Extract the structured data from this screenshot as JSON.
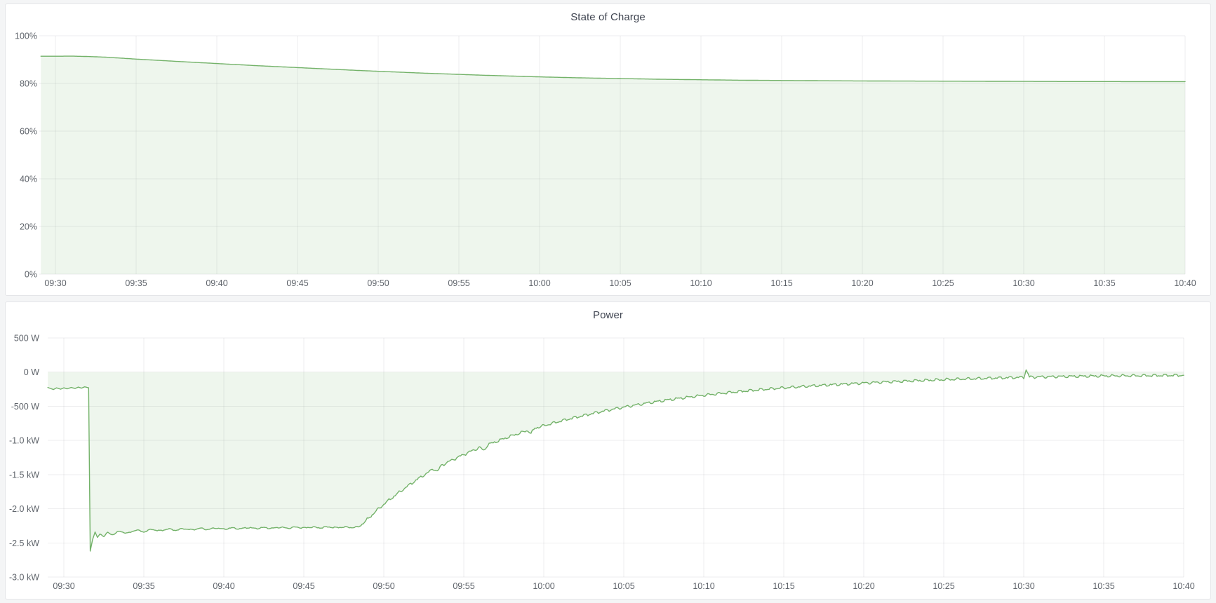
{
  "page": {
    "background_color": "#f4f5f6",
    "panel_background": "#ffffff",
    "accent_green": "#73b269"
  },
  "chart_data": [
    {
      "type": "area",
      "title": "State of Charge",
      "xlabel": "",
      "ylabel": "",
      "unit": "%",
      "ylim": [
        0,
        100
      ],
      "baseline": 0,
      "grid": true,
      "legend_position": "none",
      "line_color": "#73b269",
      "fill_color": "rgba(115,178,105,0.12)",
      "y_ticks": [
        {
          "value": 100,
          "label": "100%"
        },
        {
          "value": 80,
          "label": "80%"
        },
        {
          "value": 60,
          "label": "60%"
        },
        {
          "value": 40,
          "label": "40%"
        },
        {
          "value": 20,
          "label": "20%"
        },
        {
          "value": 0,
          "label": "0%"
        }
      ],
      "x_ticks": [
        "09:30",
        "09:35",
        "09:40",
        "09:45",
        "09:50",
        "09:55",
        "10:00",
        "10:05",
        "10:10",
        "10:15",
        "10:20",
        "10:25",
        "10:30",
        "10:35",
        "10:40"
      ],
      "x_tick_interval_minutes": 5,
      "x_data_range_minutes": [
        -0.9,
        70
      ],
      "series": [
        {
          "name": "State of Charge",
          "points_minутes_percent_comment": "pairs of [minutes after 09:30, percent]",
          "points": [
            [
              -0.9,
              91.4
            ],
            [
              0,
              91.4
            ],
            [
              1,
              91.45
            ],
            [
              2,
              91.3
            ],
            [
              3,
              91.05
            ],
            [
              4,
              90.65
            ],
            [
              5,
              90.2
            ],
            [
              6.25,
              89.75
            ],
            [
              7.5,
              89.25
            ],
            [
              8.75,
              88.8
            ],
            [
              10,
              88.35
            ],
            [
              11.25,
              87.9
            ],
            [
              12.5,
              87.45
            ],
            [
              13.75,
              87.05
            ],
            [
              15,
              86.65
            ],
            [
              16.25,
              86.25
            ],
            [
              17.5,
              85.85
            ],
            [
              18.75,
              85.45
            ],
            [
              20,
              85.1
            ],
            [
              21.25,
              84.75
            ],
            [
              22.5,
              84.4
            ],
            [
              23.75,
              84.1
            ],
            [
              25,
              83.8
            ],
            [
              26.25,
              83.5
            ],
            [
              27.5,
              83.25
            ],
            [
              28.75,
              83.0
            ],
            [
              30,
              82.75
            ],
            [
              31.25,
              82.55
            ],
            [
              32.5,
              82.35
            ],
            [
              33.75,
              82.2
            ],
            [
              35,
              82.05
            ],
            [
              36.25,
              81.9
            ],
            [
              37.5,
              81.75
            ],
            [
              38.75,
              81.65
            ],
            [
              40,
              81.55
            ],
            [
              41.25,
              81.45
            ],
            [
              42.5,
              81.35
            ],
            [
              43.75,
              81.3
            ],
            [
              45,
              81.25
            ],
            [
              46.25,
              81.2
            ],
            [
              47.5,
              81.15
            ],
            [
              48.75,
              81.1
            ],
            [
              50,
              81.05
            ],
            [
              52.5,
              81.0
            ],
            [
              55,
              80.95
            ],
            [
              57.5,
              80.9
            ],
            [
              60,
              80.85
            ],
            [
              62.5,
              80.8
            ],
            [
              65,
              80.8
            ],
            [
              67.5,
              80.75
            ],
            [
              70,
              80.75
            ]
          ]
        }
      ]
    },
    {
      "type": "area",
      "title": "Power",
      "xlabel": "",
      "ylabel": "",
      "unit": "W",
      "ylim": [
        -3000,
        500
      ],
      "baseline": 0,
      "grid": true,
      "legend_position": "none",
      "line_color": "#73b269",
      "fill_color": "rgba(115,178,105,0.12)",
      "noise": [
        {
          "until_m": 2.2,
          "amp": 0
        },
        {
          "until_m": 18.5,
          "amp": 14
        },
        {
          "until_m": 70,
          "amp": 26
        }
      ],
      "y_ticks": [
        {
          "value": 500,
          "label": "500 W"
        },
        {
          "value": 0,
          "label": "0 W"
        },
        {
          "value": -500,
          "label": "-500 W"
        },
        {
          "value": -1000,
          "label": "-1.0 kW"
        },
        {
          "value": -1500,
          "label": "-1.5 kW"
        },
        {
          "value": -2000,
          "label": "-2.0 kW"
        },
        {
          "value": -2500,
          "label": "-2.5 kW"
        },
        {
          "value": -3000,
          "label": "-3.0 kW"
        }
      ],
      "x_ticks": [
        "09:30",
        "09:35",
        "09:40",
        "09:45",
        "09:50",
        "09:55",
        "10:00",
        "10:05",
        "10:10",
        "10:15",
        "10:20",
        "10:25",
        "10:30",
        "10:35",
        "10:40"
      ],
      "x_tick_interval_minutes": 5,
      "x_data_range_minutes": [
        -1,
        70
      ],
      "series": [
        {
          "name": "Power",
          "points_minutes_watts_comment": "pairs of [minutes after 09:30, watts]",
          "points": [
            [
              -1,
              -225
            ],
            [
              -0.65,
              -255
            ],
            [
              -0.45,
              -230
            ],
            [
              -0.2,
              -250
            ],
            [
              0,
              -230
            ],
            [
              0.2,
              -245
            ],
            [
              0.45,
              -225
            ],
            [
              0.7,
              -240
            ],
            [
              0.9,
              -220
            ],
            [
              1.1,
              -235
            ],
            [
              1.3,
              -215
            ],
            [
              1.45,
              -225
            ],
            [
              1.55,
              -230
            ],
            [
              1.65,
              -2620
            ],
            [
              1.8,
              -2450
            ],
            [
              1.95,
              -2340
            ],
            [
              2.1,
              -2420
            ],
            [
              2.25,
              -2370
            ],
            [
              2.5,
              -2400
            ],
            [
              2.75,
              -2350
            ],
            [
              3,
              -2380
            ],
            [
              3.5,
              -2330
            ],
            [
              4,
              -2360
            ],
            [
              4.5,
              -2310
            ],
            [
              5,
              -2340
            ],
            [
              5.5,
              -2300
            ],
            [
              6,
              -2325
            ],
            [
              6.5,
              -2295
            ],
            [
              7,
              -2315
            ],
            [
              7.5,
              -2290
            ],
            [
              8,
              -2310
            ],
            [
              8.5,
              -2285
            ],
            [
              9,
              -2305
            ],
            [
              9.5,
              -2280
            ],
            [
              10,
              -2300
            ],
            [
              10.5,
              -2280
            ],
            [
              11,
              -2295
            ],
            [
              11.5,
              -2275
            ],
            [
              12,
              -2290
            ],
            [
              12.5,
              -2275
            ],
            [
              13,
              -2288
            ],
            [
              13.5,
              -2270
            ],
            [
              14,
              -2285
            ],
            [
              14.5,
              -2268
            ],
            [
              15,
              -2282
            ],
            [
              15.5,
              -2268
            ],
            [
              16,
              -2280
            ],
            [
              16.5,
              -2265
            ],
            [
              17,
              -2278
            ],
            [
              17.5,
              -2268
            ],
            [
              18,
              -2275
            ],
            [
              18.4,
              -2268
            ],
            [
              18.8,
              -2195
            ],
            [
              19.2,
              -2105
            ],
            [
              19.6,
              -2015
            ],
            [
              20,
              -1935
            ],
            [
              20.4,
              -1860
            ],
            [
              20.8,
              -1788
            ],
            [
              21.2,
              -1718
            ],
            [
              21.6,
              -1650
            ],
            [
              22,
              -1585
            ],
            [
              22.4,
              -1523
            ],
            [
              22.8,
              -1465
            ],
            [
              23.1,
              -1412
            ],
            [
              23.35,
              -1455
            ],
            [
              23.6,
              -1365
            ],
            [
              24,
              -1318
            ],
            [
              24.4,
              -1272
            ],
            [
              24.8,
              -1228
            ],
            [
              25.2,
              -1185
            ],
            [
              25.6,
              -1143
            ],
            [
              26,
              -1103
            ],
            [
              26.25,
              -1148
            ],
            [
              26.5,
              -1063
            ],
            [
              27,
              -1020
            ],
            [
              27.5,
              -975
            ],
            [
              28,
              -932
            ],
            [
              28.5,
              -892
            ],
            [
              29,
              -855
            ],
            [
              29.2,
              -900
            ],
            [
              29.45,
              -818
            ],
            [
              30,
              -785
            ],
            [
              30.5,
              -752
            ],
            [
              31,
              -720
            ],
            [
              31.5,
              -690
            ],
            [
              32,
              -662
            ],
            [
              32.5,
              -635
            ],
            [
              33,
              -608
            ],
            [
              33.5,
              -582
            ],
            [
              34,
              -558
            ],
            [
              34.5,
              -535
            ],
            [
              35,
              -513
            ],
            [
              35.5,
              -492
            ],
            [
              36,
              -472
            ],
            [
              36.5,
              -452
            ],
            [
              37,
              -434
            ],
            [
              37.5,
              -416
            ],
            [
              38,
              -399
            ],
            [
              38.5,
              -383
            ],
            [
              39,
              -368
            ],
            [
              39.5,
              -353
            ],
            [
              40,
              -339
            ],
            [
              40.5,
              -326
            ],
            [
              41,
              -313
            ],
            [
              41.5,
              -301
            ],
            [
              42,
              -289
            ],
            [
              42.5,
              -278
            ],
            [
              43,
              -268
            ],
            [
              43.5,
              -258
            ],
            [
              44,
              -248
            ],
            [
              44.5,
              -239
            ],
            [
              45,
              -230
            ],
            [
              45.5,
              -222
            ],
            [
              46,
              -214
            ],
            [
              46.5,
              -206
            ],
            [
              47,
              -199
            ],
            [
              47.5,
              -192
            ],
            [
              48,
              -185
            ],
            [
              48.5,
              -179
            ],
            [
              49,
              -172
            ],
            [
              49.5,
              -166
            ],
            [
              50,
              -160
            ],
            [
              50.5,
              -154
            ],
            [
              51,
              -148
            ],
            [
              51.5,
              -143
            ],
            [
              52,
              -138
            ],
            [
              52.5,
              -133
            ],
            [
              53,
              -128
            ],
            [
              53.5,
              -123
            ],
            [
              54,
              -119
            ],
            [
              54.5,
              -114
            ],
            [
              55,
              -110
            ],
            [
              55.5,
              -106
            ],
            [
              56,
              -102
            ],
            [
              56.5,
              -99
            ],
            [
              57,
              -95
            ],
            [
              57.5,
              -92
            ],
            [
              58,
              -88
            ],
            [
              58.5,
              -85
            ],
            [
              59,
              -82
            ],
            [
              59.5,
              -79
            ],
            [
              60,
              -76
            ],
            [
              60.15,
              35
            ],
            [
              60.35,
              -72
            ],
            [
              61,
              -70
            ],
            [
              61.5,
              -68
            ],
            [
              62,
              -66
            ],
            [
              62.5,
              -64
            ],
            [
              63,
              -62
            ],
            [
              63.5,
              -61
            ],
            [
              64,
              -59
            ],
            [
              64.5,
              -58
            ],
            [
              65,
              -56
            ],
            [
              65.5,
              -55
            ],
            [
              66,
              -54
            ],
            [
              66.5,
              -53
            ],
            [
              67,
              -52
            ],
            [
              67.5,
              -51
            ],
            [
              68,
              -50
            ],
            [
              68.5,
              -49
            ],
            [
              69,
              -48
            ],
            [
              69.5,
              -47
            ],
            [
              70,
              -46
            ]
          ]
        }
      ]
    }
  ]
}
